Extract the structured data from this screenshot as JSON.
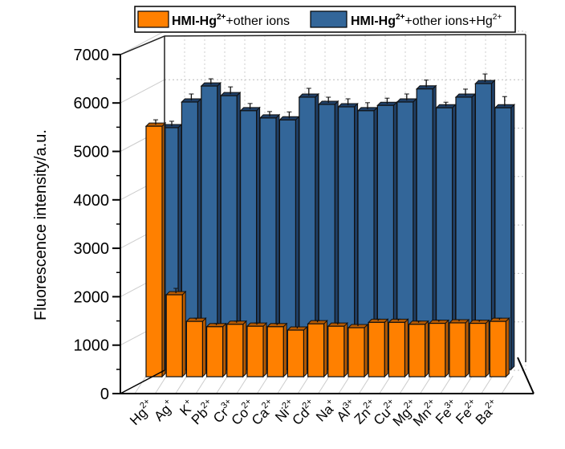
{
  "chart_data": {
    "type": "bar",
    "style": "3d-grouped",
    "title": "",
    "xlabel": "",
    "ylabel": "Fluorescence intensity/a.u.",
    "ylim": [
      0,
      7000
    ],
    "yticks": [
      "0",
      "1000",
      "2000",
      "3000",
      "4000",
      "5000",
      "6000",
      "7000"
    ],
    "grid": true,
    "legend_position": "top",
    "categories": [
      {
        "base": "Hg",
        "sup": "2+"
      },
      {
        "base": "Ag",
        "sup": "+"
      },
      {
        "base": "K",
        "sup": "+"
      },
      {
        "base": "Pb",
        "sup": "2+"
      },
      {
        "base": "Cr",
        "sup": "3+"
      },
      {
        "base": "Co",
        "sup": "2+"
      },
      {
        "base": "Ca",
        "sup": "2+"
      },
      {
        "base": "Ni",
        "sup": "2+"
      },
      {
        "base": "Cd",
        "sup": "2+"
      },
      {
        "base": "Na",
        "sup": "+"
      },
      {
        "base": "Al",
        "sup": "3+"
      },
      {
        "base": "Zn",
        "sup": "2+"
      },
      {
        "base": "Cu",
        "sup": "2+"
      },
      {
        "base": "Mg",
        "sup": "2+"
      },
      {
        "base": "Mn",
        "sup": "2+"
      },
      {
        "base": "Fe",
        "sup": "3+"
      },
      {
        "base": "Fe",
        "sup": "2+"
      },
      {
        "base": "Ba",
        "sup": "2+"
      }
    ],
    "series": [
      {
        "name": "HMI-Hg2+ +other ions",
        "legend": {
          "bold": "HMI-Hg",
          "bold_sup": "2+",
          "rest": "+other ions",
          "rest_sup": ""
        },
        "color": "#ff8000",
        "values": [
          5520,
          2040,
          1490,
          1380,
          1430,
          1390,
          1380,
          1310,
          1440,
          1390,
          1360,
          1470,
          1470,
          1430,
          1450,
          1460,
          1450,
          1490
        ]
      },
      {
        "name": "HMI-Hg2+ +other ions+Hg2+",
        "legend": {
          "bold": "HMI-Hg",
          "bold_sup": "2+",
          "rest": "+other ions+Hg",
          "rest_sup": "2+"
        },
        "color": "#336699",
        "values": [
          5490,
          6020,
          6350,
          6150,
          5840,
          5690,
          5650,
          6120,
          5970,
          5920,
          5840,
          5950,
          6020,
          6290,
          5900,
          6120,
          6400,
          5900
        ]
      }
    ]
  }
}
